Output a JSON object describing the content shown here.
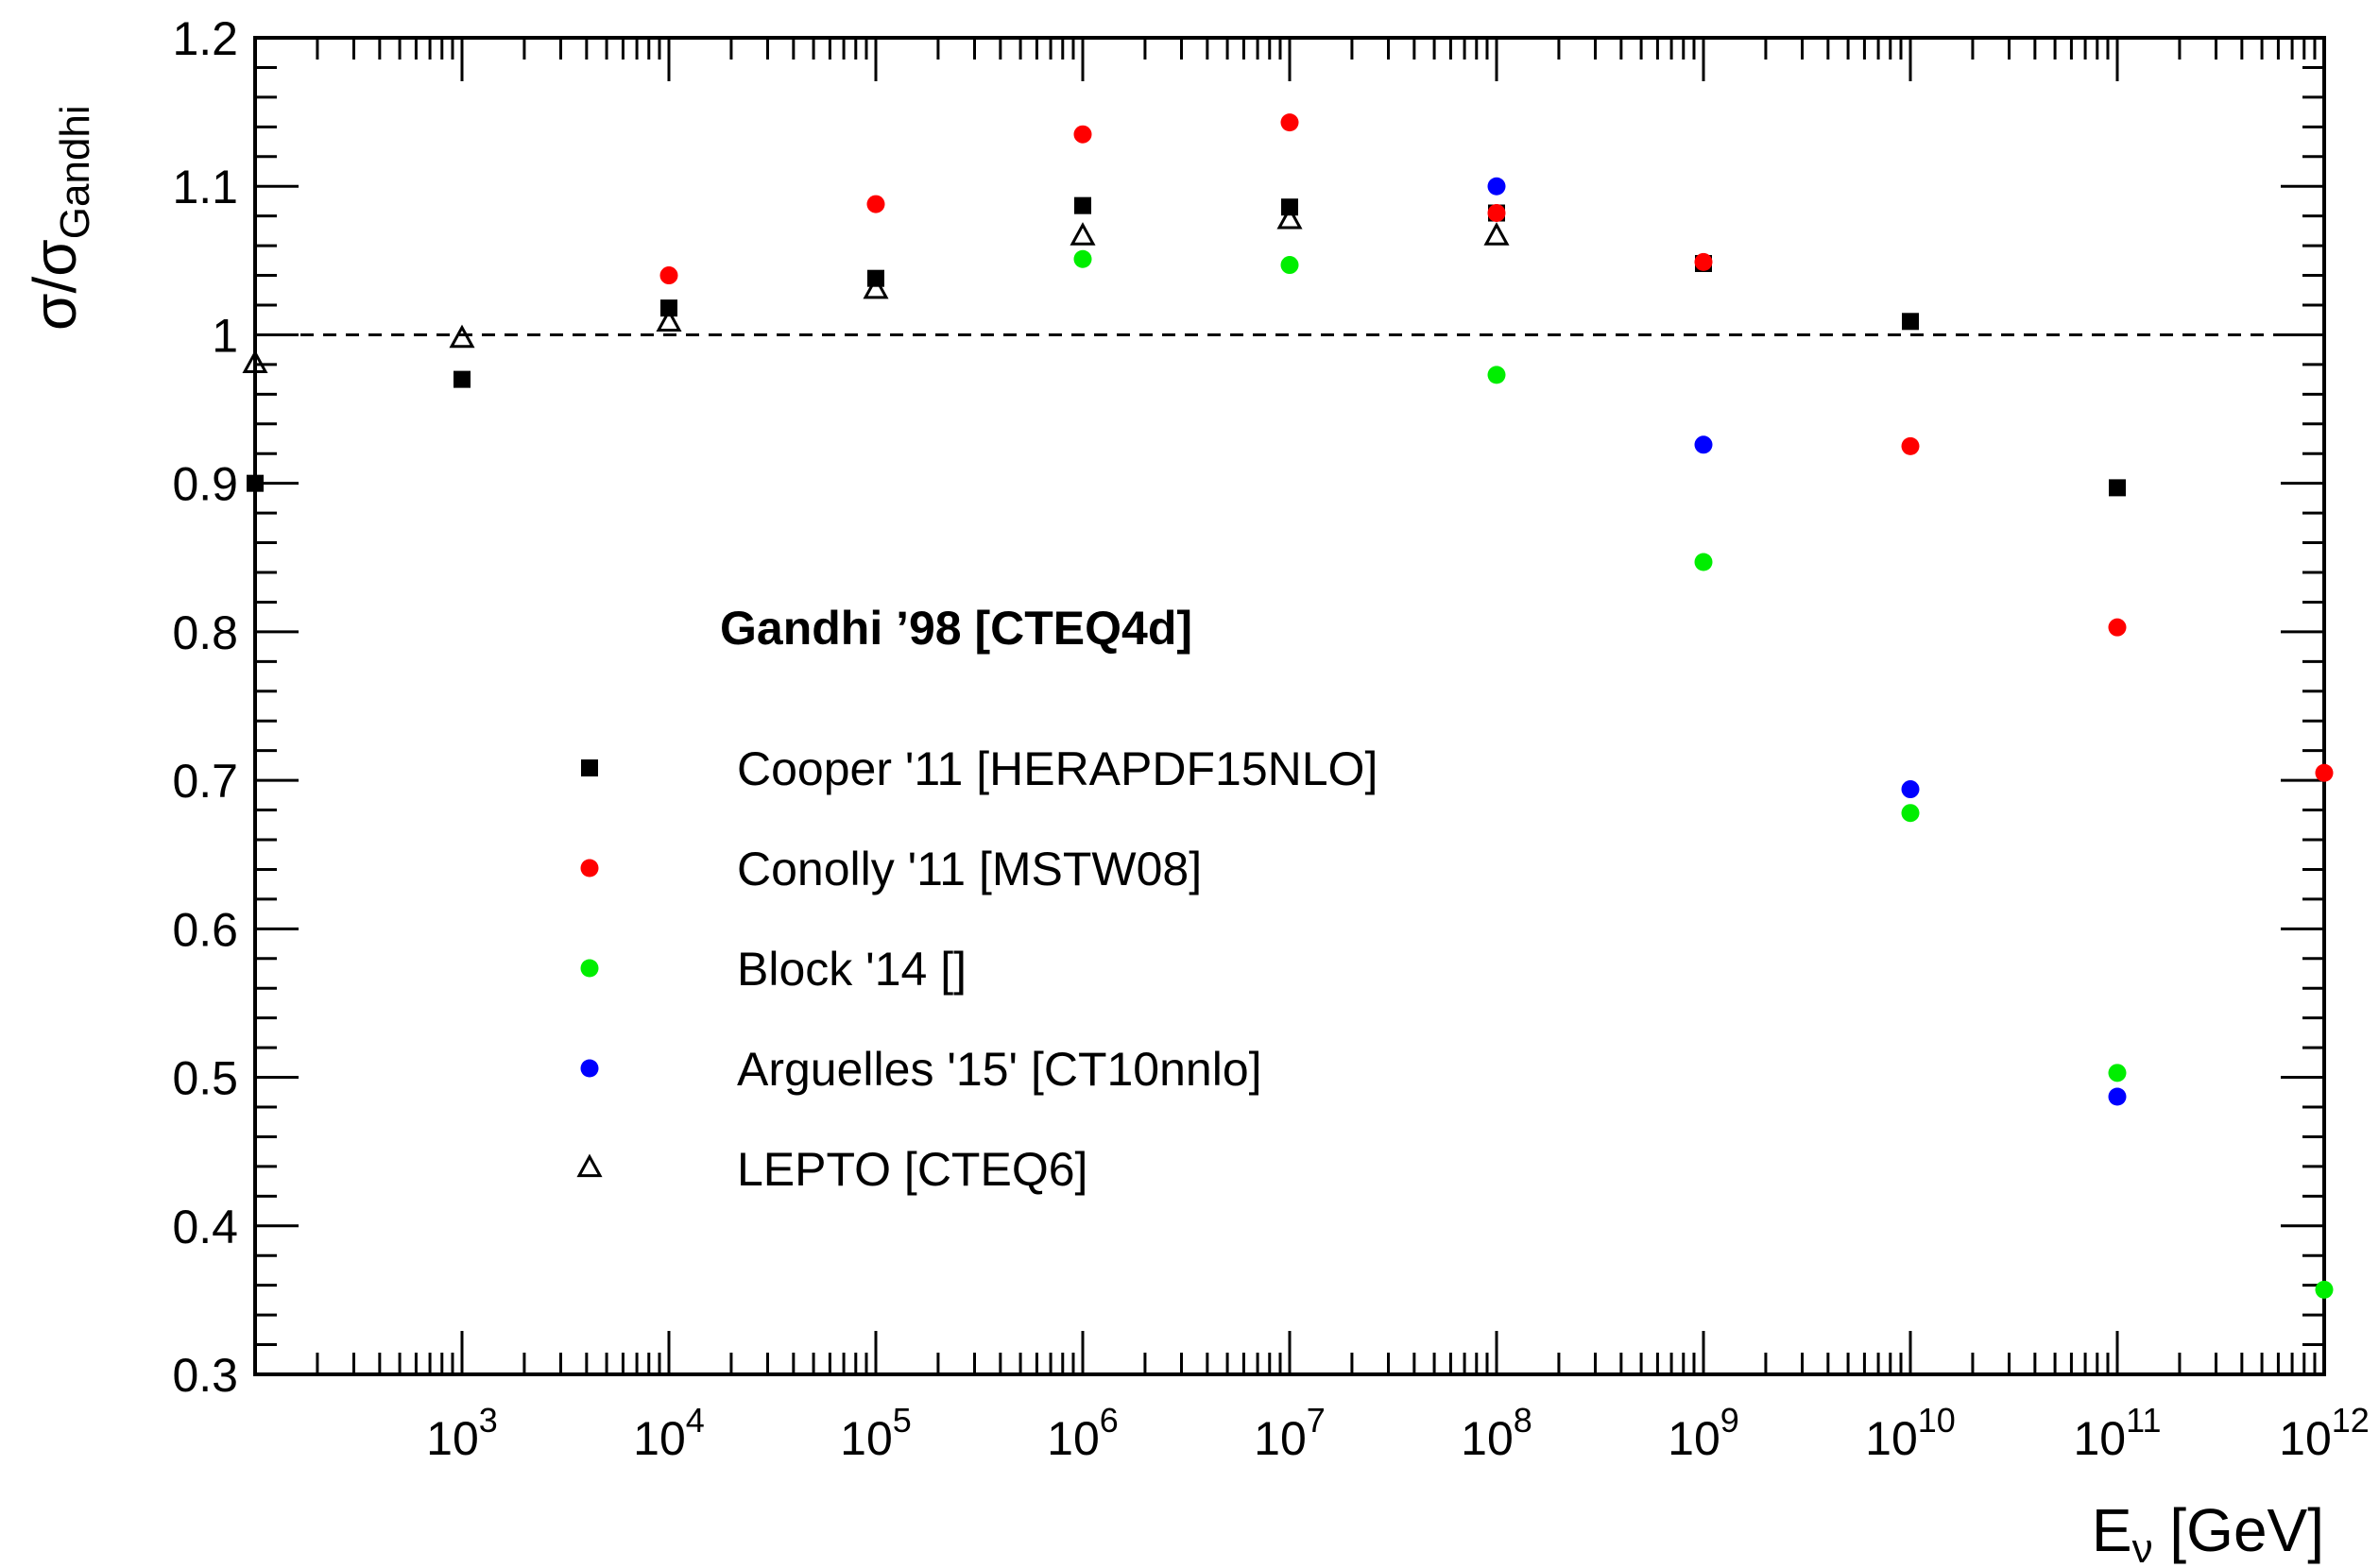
{
  "chart_data": {
    "type": "scatter",
    "x_scale": "log",
    "xlim": [
      100,
      1000000000000
    ],
    "ylim": [
      0.3,
      1.2
    ],
    "x_ticks": [
      {
        "value": 1000,
        "base": "10",
        "exp": "3"
      },
      {
        "value": 10000,
        "base": "10",
        "exp": "4"
      },
      {
        "value": 100000,
        "base": "10",
        "exp": "5"
      },
      {
        "value": 1000000,
        "base": "10",
        "exp": "6"
      },
      {
        "value": 10000000,
        "base": "10",
        "exp": "7"
      },
      {
        "value": 100000000,
        "base": "10",
        "exp": "8"
      },
      {
        "value": 1000000000,
        "base": "10",
        "exp": "9"
      },
      {
        "value": 10000000000,
        "base": "10",
        "exp": "10"
      },
      {
        "value": 100000000000,
        "base": "10",
        "exp": "11"
      },
      {
        "value": 1000000000000,
        "base": "10",
        "exp": "12"
      }
    ],
    "y_ticks": [
      {
        "value": 0.3,
        "label": "0.3"
      },
      {
        "value": 0.4,
        "label": "0.4"
      },
      {
        "value": 0.5,
        "label": "0.5"
      },
      {
        "value": 0.6,
        "label": "0.6"
      },
      {
        "value": 0.7,
        "label": "0.7"
      },
      {
        "value": 0.8,
        "label": "0.8"
      },
      {
        "value": 0.9,
        "label": "0.9"
      },
      {
        "value": 1.0,
        "label": "1"
      },
      {
        "value": 1.1,
        "label": "1.1"
      },
      {
        "value": 1.2,
        "label": "1.2"
      }
    ],
    "xlabel": {
      "main": "E",
      "sub": "ν",
      "rest": " [GeV]"
    },
    "ylabel": {
      "main": "σ/σ",
      "sub": "Gandhi"
    },
    "reference_line": 1.0,
    "legend_title": "Gandhi ’98 [CTEQ4d]",
    "series": [
      {
        "name": "Cooper '11 [HERAPDF15NLO]",
        "marker": "square",
        "color": "#000000",
        "points": [
          [
            100,
            0.9
          ],
          [
            1000,
            0.97
          ],
          [
            10000,
            1.018
          ],
          [
            100000,
            1.038
          ],
          [
            1000000,
            1.087
          ],
          [
            10000000,
            1.086
          ],
          [
            100000000,
            1.082
          ],
          [
            1000000000,
            1.048
          ],
          [
            10000000000,
            1.009
          ],
          [
            100000000000,
            0.897
          ]
        ]
      },
      {
        "name": "Conolly '11 [MSTW08]",
        "marker": "circle",
        "color": "#ff0000",
        "points": [
          [
            10000,
            1.04
          ],
          [
            100000,
            1.088
          ],
          [
            1000000,
            1.135
          ],
          [
            10000000,
            1.143
          ],
          [
            100000000,
            1.082
          ],
          [
            1000000000,
            1.049
          ],
          [
            10000000000,
            0.925
          ],
          [
            100000000000,
            0.803
          ],
          [
            1000000000000,
            0.705
          ]
        ]
      },
      {
        "name": "Block '14 []",
        "marker": "circle",
        "color": "#00ee00",
        "points": [
          [
            1000000,
            1.051
          ],
          [
            10000000,
            1.047
          ],
          [
            100000000,
            0.973
          ],
          [
            1000000000,
            0.847
          ],
          [
            10000000000,
            0.678
          ],
          [
            100000000000,
            0.503
          ],
          [
            1000000000000,
            0.357
          ]
        ]
      },
      {
        "name": "Arguelles '15' [CT10nnlo]",
        "marker": "circle",
        "color": "#0000ff",
        "points": [
          [
            100000000,
            1.1
          ],
          [
            1000000000,
            0.926
          ],
          [
            10000000000,
            0.694
          ],
          [
            100000000000,
            0.487
          ]
        ]
      },
      {
        "name": "LEPTO [CTEQ6]",
        "marker": "triangle-open",
        "color": "#000000",
        "points": [
          [
            100,
            0.98
          ],
          [
            1000,
            0.997
          ],
          [
            10000,
            1.008
          ],
          [
            100000,
            1.03
          ],
          [
            1000000,
            1.066
          ],
          [
            10000000,
            1.077
          ],
          [
            100000000,
            1.066
          ]
        ]
      }
    ]
  }
}
